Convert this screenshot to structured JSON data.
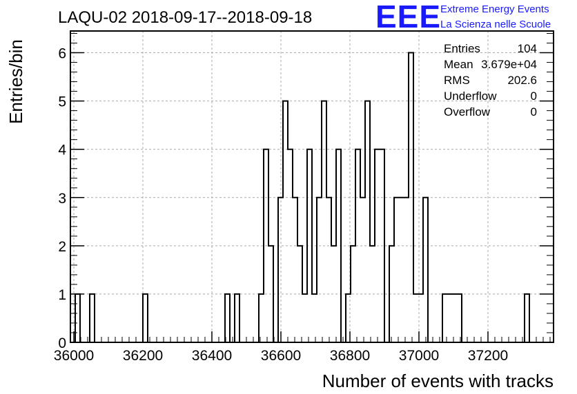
{
  "chart_data": {
    "type": "histogram",
    "title": "LAQU-02 2018-09-17--2018-09-18",
    "xlabel": "Number of events with tracks",
    "ylabel": "Entries/bin",
    "xlim": [
      35990,
      37390
    ],
    "ylim": [
      0,
      6.45
    ],
    "bin_width": 14,
    "x_ticks": [
      "36000",
      "36200",
      "36400",
      "36600",
      "36800",
      "37000",
      "37200"
    ],
    "y_ticks": [
      "0",
      "1",
      "2",
      "3",
      "4",
      "5",
      "6"
    ],
    "grid": true,
    "bins": [
      {
        "x0": 36004,
        "x1": 36018,
        "count": 1
      },
      {
        "x0": 36046,
        "x1": 36060,
        "count": 1
      },
      {
        "x0": 36200,
        "x1": 36214,
        "count": 1
      },
      {
        "x0": 36438,
        "x1": 36452,
        "count": 1
      },
      {
        "x0": 36466,
        "x1": 36480,
        "count": 1
      },
      {
        "x0": 36536,
        "x1": 36550,
        "count": 1
      },
      {
        "x0": 36550,
        "x1": 36564,
        "count": 4
      },
      {
        "x0": 36564,
        "x1": 36578,
        "count": 2
      },
      {
        "x0": 36592,
        "x1": 36606,
        "count": 3
      },
      {
        "x0": 36606,
        "x1": 36620,
        "count": 5
      },
      {
        "x0": 36620,
        "x1": 36634,
        "count": 4
      },
      {
        "x0": 36634,
        "x1": 36648,
        "count": 3
      },
      {
        "x0": 36648,
        "x1": 36662,
        "count": 2
      },
      {
        "x0": 36662,
        "x1": 36676,
        "count": 1
      },
      {
        "x0": 36676,
        "x1": 36690,
        "count": 4
      },
      {
        "x0": 36690,
        "x1": 36704,
        "count": 1
      },
      {
        "x0": 36704,
        "x1": 36718,
        "count": 3
      },
      {
        "x0": 36718,
        "x1": 36732,
        "count": 5
      },
      {
        "x0": 36732,
        "x1": 36746,
        "count": 3
      },
      {
        "x0": 36746,
        "x1": 36760,
        "count": 2
      },
      {
        "x0": 36760,
        "x1": 36774,
        "count": 4
      },
      {
        "x0": 36788,
        "x1": 36802,
        "count": 1
      },
      {
        "x0": 36802,
        "x1": 36816,
        "count": 2
      },
      {
        "x0": 36816,
        "x1": 36830,
        "count": 4
      },
      {
        "x0": 36830,
        "x1": 36844,
        "count": 3
      },
      {
        "x0": 36844,
        "x1": 36858,
        "count": 5
      },
      {
        "x0": 36858,
        "x1": 36872,
        "count": 2
      },
      {
        "x0": 36872,
        "x1": 36900,
        "count": 4
      },
      {
        "x0": 36914,
        "x1": 36928,
        "count": 2
      },
      {
        "x0": 36928,
        "x1": 36970,
        "count": 3
      },
      {
        "x0": 36970,
        "x1": 36984,
        "count": 6
      },
      {
        "x0": 36984,
        "x1": 37012,
        "count": 1
      },
      {
        "x0": 37012,
        "x1": 37026,
        "count": 3
      },
      {
        "x0": 37068,
        "x1": 37124,
        "count": 1
      },
      {
        "x0": 37306,
        "x1": 37320,
        "count": 1
      }
    ]
  },
  "stats": [
    {
      "label": "Entries",
      "value": "104"
    },
    {
      "label": "Mean",
      "value": "3.679e+04"
    },
    {
      "label": "RMS",
      "value": "202.6"
    },
    {
      "label": "Underflow",
      "value": "0"
    },
    {
      "label": "Overflow",
      "value": "0"
    }
  ],
  "logo": {
    "text": "EEE",
    "line1": "Extreme Energy Events",
    "line2": "La Scienza nelle Scuole",
    "color": "#1a1aff"
  }
}
